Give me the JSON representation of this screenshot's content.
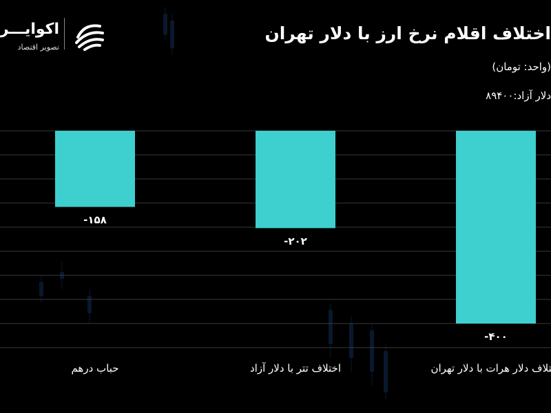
{
  "brand": {
    "name": "اکوایـــران",
    "tagline": "تصویر اقتصاد"
  },
  "header": {
    "title": "اختلاف اقلام نرخ ارز با دلار تهران",
    "unit_line": "(واحد: تومان)",
    "reference_line": "دلار آزاد:۸۹۴۰۰"
  },
  "colors": {
    "bar": "#3ECFCF",
    "background": "#000000",
    "grid": "#3a3a3a"
  },
  "chart_data": {
    "type": "bar",
    "title": "اختلاف اقلام نرخ ارز با دلار تهران",
    "categories": [
      "حباب درهم",
      "اختلاف تتر با دلار آزاد",
      "اختلاف دلار هرات با دلار تهران"
    ],
    "values": [
      -158,
      -202,
      -400
    ],
    "value_labels": [
      "-۱۵۸",
      "-۲۰۲",
      "-۴۰۰"
    ],
    "ylim": [
      -450,
      0
    ],
    "grid": true,
    "legend": "none"
  }
}
